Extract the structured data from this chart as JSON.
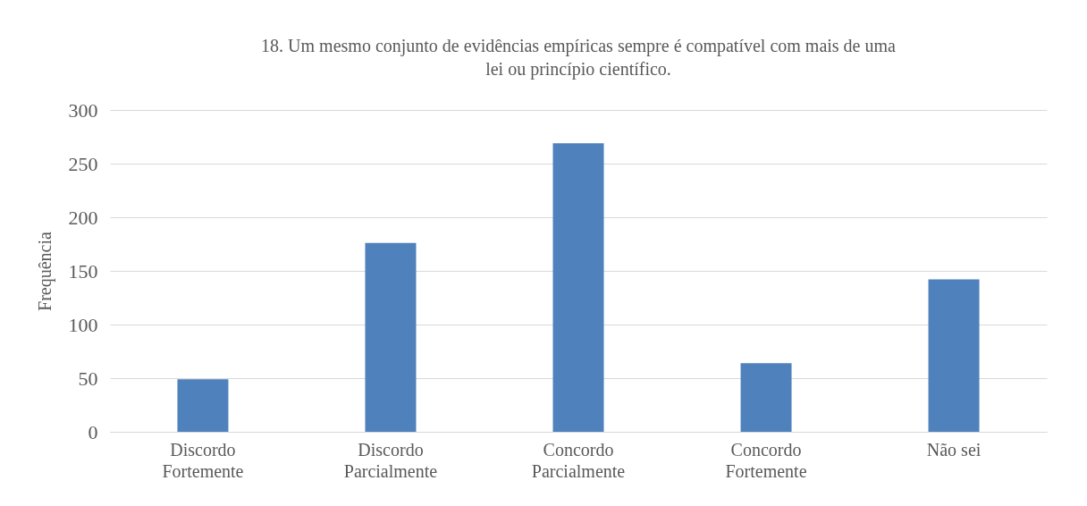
{
  "chart_data": {
    "type": "bar",
    "title": "18. Um mesmo conjunto de evidências empíricas sempre é compatível com mais de uma\nlei ou princípio científico.",
    "ylabel": "Frequência",
    "categories": [
      "Discordo\nFortemente",
      "Discordo\nParcialmente",
      "Concordo\nParcialmente",
      "Concordo\nFortemente",
      "Não sei"
    ],
    "values": [
      49,
      176,
      269,
      64,
      142
    ],
    "color": "#4f81bd",
    "ylim": [
      0,
      300
    ],
    "yticks": [
      0,
      50,
      100,
      150,
      200,
      250,
      300
    ],
    "grid": "y"
  }
}
